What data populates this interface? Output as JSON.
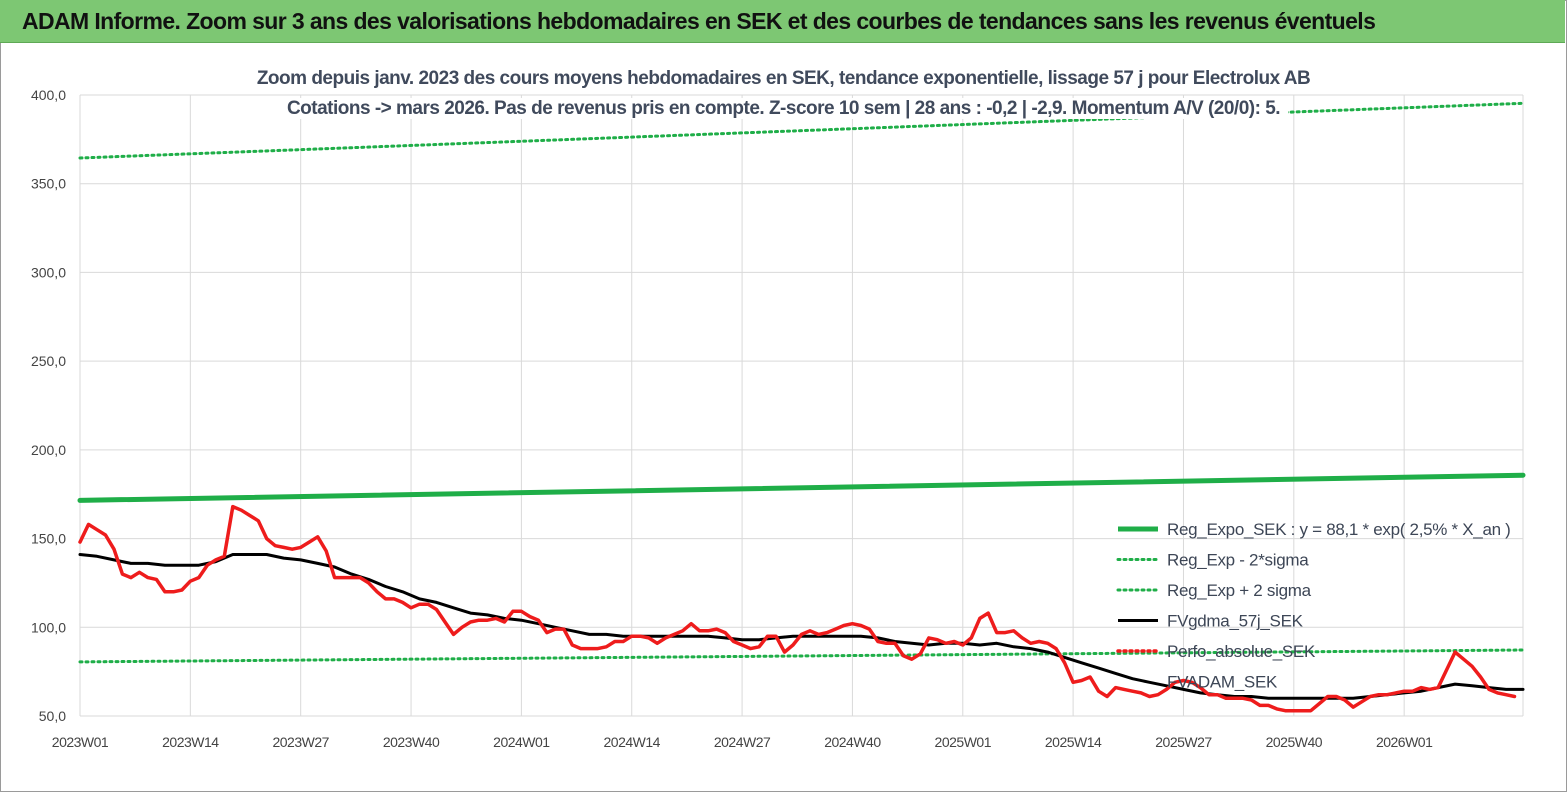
{
  "header": {
    "title": "ADAM Informe. Zoom sur 3 ans des valorisations hebdomadaires en SEK et des courbes de tendances sans les revenus éventuels"
  },
  "chart_data": {
    "type": "line",
    "title": "Zoom depuis janv. 2023 des cours moyens hebdomadaires en SEK, tendance exponentielle, lissage 57 j pour Electrolux AB",
    "subtitle": "Cotations -> mars 2026. Pas de revenus pris en  compte. Z-score 10 sem  | 28 ans : -0,2 | -2,9. Momentum A/V (20/0): 5.",
    "xlabel": "",
    "ylabel": "",
    "ylim": [
      50,
      400
    ],
    "yticks": [
      "50,0",
      "100,0",
      "150,0",
      "200,0",
      "250,0",
      "300,0",
      "350,0",
      "400,0"
    ],
    "xticks": [
      {
        "label": "2023W01",
        "week": 0
      },
      {
        "label": "2023W14",
        "week": 13
      },
      {
        "label": "2023W27",
        "week": 26
      },
      {
        "label": "2023W40",
        "week": 39
      },
      {
        "label": "2024W01",
        "week": 52
      },
      {
        "label": "2024W14",
        "week": 65
      },
      {
        "label": "2024W27",
        "week": 78
      },
      {
        "label": "2024W40",
        "week": 91
      },
      {
        "label": "2025W01",
        "week": 104
      },
      {
        "label": "2025W14",
        "week": 117
      },
      {
        "label": "2025W27",
        "week": 130
      },
      {
        "label": "2025W40",
        "week": 143
      },
      {
        "label": "2026W01",
        "week": 156
      }
    ],
    "x_range_weeks": [
      0,
      170
    ],
    "grid": true,
    "legend_position": "right",
    "colors": {
      "reg_expo": "#1fae48",
      "sigma": "#1fae48",
      "fvgdma": "#000000",
      "perfo": "#ee1c1c",
      "grid": "#d9d9d9"
    },
    "series": [
      {
        "name": "Reg_Expo_SEK : y = 88,1 * exp( 2,5% *  X_an )",
        "key": "reg_expo",
        "style": "solid-thick",
        "points": [
          [
            0,
            171.5
          ],
          [
            170,
            185.7
          ]
        ]
      },
      {
        "name": "Reg_Exp - 2*sigma",
        "key": "minus2",
        "style": "dotted",
        "points": [
          [
            0,
            80.5
          ],
          [
            170,
            87.2
          ]
        ]
      },
      {
        "name": "Reg_Exp + 2 sigma",
        "key": "plus2",
        "style": "dotted",
        "points": [
          [
            0,
            364.5
          ],
          [
            170,
            395.3
          ]
        ]
      },
      {
        "name": "FVgdma_57j_SEK",
        "key": "fvgdma",
        "style": "solid",
        "points": [
          [
            0,
            141
          ],
          [
            2,
            140
          ],
          [
            4,
            138
          ],
          [
            6,
            136
          ],
          [
            8,
            136
          ],
          [
            10,
            135
          ],
          [
            12,
            135
          ],
          [
            14,
            135
          ],
          [
            16,
            137
          ],
          [
            18,
            141
          ],
          [
            20,
            141
          ],
          [
            22,
            141
          ],
          [
            24,
            139
          ],
          [
            26,
            138
          ],
          [
            28,
            136
          ],
          [
            30,
            134
          ],
          [
            32,
            130
          ],
          [
            34,
            127
          ],
          [
            36,
            123
          ],
          [
            38,
            120
          ],
          [
            40,
            116
          ],
          [
            42,
            114
          ],
          [
            44,
            111
          ],
          [
            46,
            108
          ],
          [
            48,
            107
          ],
          [
            50,
            105
          ],
          [
            52,
            104
          ],
          [
            54,
            102
          ],
          [
            56,
            100
          ],
          [
            58,
            98
          ],
          [
            60,
            96
          ],
          [
            62,
            96
          ],
          [
            64,
            95
          ],
          [
            66,
            95
          ],
          [
            68,
            95
          ],
          [
            70,
            95
          ],
          [
            72,
            95
          ],
          [
            74,
            95
          ],
          [
            76,
            94
          ],
          [
            78,
            93
          ],
          [
            80,
            93
          ],
          [
            82,
            94
          ],
          [
            84,
            95
          ],
          [
            86,
            95
          ],
          [
            88,
            95
          ],
          [
            90,
            95
          ],
          [
            92,
            95
          ],
          [
            94,
            94
          ],
          [
            96,
            92
          ],
          [
            98,
            91
          ],
          [
            100,
            90
          ],
          [
            102,
            91
          ],
          [
            104,
            91
          ],
          [
            106,
            90
          ],
          [
            108,
            91
          ],
          [
            110,
            89
          ],
          [
            112,
            88
          ],
          [
            114,
            86
          ],
          [
            116,
            83
          ],
          [
            118,
            80
          ],
          [
            120,
            77
          ],
          [
            122,
            74
          ],
          [
            124,
            71
          ],
          [
            126,
            69
          ],
          [
            128,
            67
          ],
          [
            130,
            65
          ],
          [
            132,
            63
          ],
          [
            134,
            62
          ],
          [
            136,
            61
          ],
          [
            138,
            61
          ],
          [
            140,
            60
          ],
          [
            142,
            60
          ],
          [
            144,
            60
          ],
          [
            146,
            60
          ],
          [
            148,
            60
          ],
          [
            150,
            60
          ],
          [
            152,
            61
          ],
          [
            154,
            62
          ],
          [
            156,
            63
          ],
          [
            158,
            64
          ],
          [
            160,
            66
          ],
          [
            162,
            68
          ],
          [
            164,
            67
          ],
          [
            166,
            66
          ],
          [
            168,
            65
          ],
          [
            170,
            65
          ]
        ]
      },
      {
        "name": "Perfo_absolue_SEK",
        "key": "perfo",
        "style": "solid-thick",
        "points": [
          [
            0,
            148
          ],
          [
            1,
            158
          ],
          [
            2,
            155
          ],
          [
            3,
            152
          ],
          [
            4,
            144
          ],
          [
            5,
            130
          ],
          [
            6,
            128
          ],
          [
            7,
            131
          ],
          [
            8,
            128
          ],
          [
            9,
            127
          ],
          [
            10,
            120
          ],
          [
            11,
            120
          ],
          [
            12,
            121
          ],
          [
            13,
            126
          ],
          [
            14,
            128
          ],
          [
            15,
            135
          ],
          [
            16,
            138
          ],
          [
            17,
            140
          ],
          [
            18,
            168
          ],
          [
            19,
            166
          ],
          [
            20,
            163
          ],
          [
            21,
            160
          ],
          [
            22,
            150
          ],
          [
            23,
            146
          ],
          [
            24,
            145
          ],
          [
            25,
            144
          ],
          [
            26,
            145
          ],
          [
            27,
            148
          ],
          [
            28,
            151
          ],
          [
            29,
            143
          ],
          [
            30,
            128
          ],
          [
            31,
            128
          ],
          [
            32,
            128
          ],
          [
            33,
            128
          ],
          [
            34,
            125
          ],
          [
            35,
            120
          ],
          [
            36,
            116
          ],
          [
            37,
            116
          ],
          [
            38,
            114
          ],
          [
            39,
            111
          ],
          [
            40,
            113
          ],
          [
            41,
            113
          ],
          [
            42,
            110
          ],
          [
            43,
            103
          ],
          [
            44,
            96
          ],
          [
            45,
            100
          ],
          [
            46,
            103
          ],
          [
            47,
            104
          ],
          [
            48,
            104
          ],
          [
            49,
            105
          ],
          [
            50,
            103
          ],
          [
            51,
            109
          ],
          [
            52,
            109
          ],
          [
            53,
            106
          ],
          [
            54,
            104
          ],
          [
            55,
            97
          ],
          [
            56,
            99
          ],
          [
            57,
            99
          ],
          [
            58,
            90
          ],
          [
            59,
            88
          ],
          [
            60,
            88
          ],
          [
            61,
            88
          ],
          [
            62,
            89
          ],
          [
            63,
            92
          ],
          [
            64,
            92
          ],
          [
            65,
            95
          ],
          [
            66,
            95
          ],
          [
            67,
            94
          ],
          [
            68,
            91
          ],
          [
            69,
            94
          ],
          [
            70,
            96
          ],
          [
            71,
            98
          ],
          [
            72,
            102
          ],
          [
            73,
            98
          ],
          [
            74,
            98
          ],
          [
            75,
            99
          ],
          [
            76,
            97
          ],
          [
            77,
            92
          ],
          [
            78,
            90
          ],
          [
            79,
            88
          ],
          [
            80,
            89
          ],
          [
            81,
            95
          ],
          [
            82,
            95
          ],
          [
            83,
            86
          ],
          [
            84,
            90
          ],
          [
            85,
            96
          ],
          [
            86,
            98
          ],
          [
            87,
            96
          ],
          [
            88,
            97
          ],
          [
            89,
            99
          ],
          [
            90,
            101
          ],
          [
            91,
            102
          ],
          [
            92,
            101
          ],
          [
            93,
            99
          ],
          [
            94,
            92
          ],
          [
            95,
            91
          ],
          [
            96,
            91
          ],
          [
            97,
            84
          ],
          [
            98,
            82
          ],
          [
            99,
            85
          ],
          [
            100,
            94
          ],
          [
            101,
            93
          ],
          [
            102,
            91
          ],
          [
            103,
            92
          ],
          [
            104,
            90
          ],
          [
            105,
            94
          ],
          [
            106,
            105
          ],
          [
            107,
            108
          ],
          [
            108,
            97
          ],
          [
            109,
            97
          ],
          [
            110,
            98
          ],
          [
            111,
            94
          ],
          [
            112,
            91
          ],
          [
            113,
            92
          ],
          [
            114,
            91
          ],
          [
            115,
            88
          ],
          [
            116,
            80
          ],
          [
            117,
            69
          ],
          [
            118,
            70
          ],
          [
            119,
            72
          ],
          [
            120,
            64
          ],
          [
            121,
            61
          ],
          [
            122,
            66
          ],
          [
            123,
            65
          ],
          [
            124,
            64
          ],
          [
            125,
            63
          ],
          [
            126,
            61
          ],
          [
            127,
            62
          ],
          [
            128,
            65
          ],
          [
            129,
            69
          ],
          [
            130,
            70
          ],
          [
            131,
            69
          ],
          [
            132,
            66
          ],
          [
            133,
            62
          ],
          [
            134,
            62
          ],
          [
            135,
            60
          ],
          [
            136,
            60
          ],
          [
            137,
            60
          ],
          [
            138,
            59
          ],
          [
            139,
            56
          ],
          [
            140,
            56
          ],
          [
            141,
            54
          ],
          [
            142,
            53
          ],
          [
            143,
            53
          ],
          [
            144,
            53
          ],
          [
            145,
            53
          ],
          [
            146,
            57
          ],
          [
            147,
            61
          ],
          [
            148,
            61
          ],
          [
            149,
            59
          ],
          [
            150,
            55
          ],
          [
            151,
            58
          ],
          [
            152,
            61
          ],
          [
            153,
            62
          ],
          [
            154,
            62
          ],
          [
            155,
            63
          ],
          [
            156,
            64
          ],
          [
            157,
            64
          ],
          [
            158,
            66
          ],
          [
            159,
            65
          ],
          [
            160,
            66
          ],
          [
            161,
            76
          ],
          [
            162,
            86
          ],
          [
            163,
            82
          ],
          [
            164,
            78
          ],
          [
            165,
            72
          ],
          [
            166,
            65
          ],
          [
            167,
            63
          ],
          [
            168,
            62
          ],
          [
            169,
            61
          ]
        ]
      },
      {
        "name": "FVADAM_SEK",
        "key": "fvadam",
        "style": "hidden",
        "points": []
      }
    ]
  }
}
